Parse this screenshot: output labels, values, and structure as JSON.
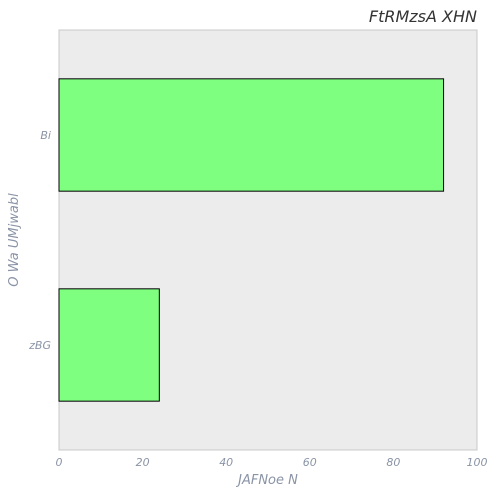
{
  "chart_data": {
    "type": "bar",
    "orientation": "horizontal",
    "title": "FtRMzsA XHN",
    "xlabel": "JAFNoe N",
    "ylabel": "O  Wa UMjwabl",
    "categories": [
      "Bi",
      "zBG"
    ],
    "values": [
      92,
      24
    ],
    "xlim": [
      0,
      100
    ],
    "xticks": [
      "0",
      "20",
      "40",
      "60",
      "80",
      "100"
    ],
    "grid": false,
    "colors": {
      "bar_fill": "#7fff7f",
      "bar_edge": "#000000",
      "plot_background": "#ececec",
      "plot_border": "#c8c8c8"
    }
  }
}
